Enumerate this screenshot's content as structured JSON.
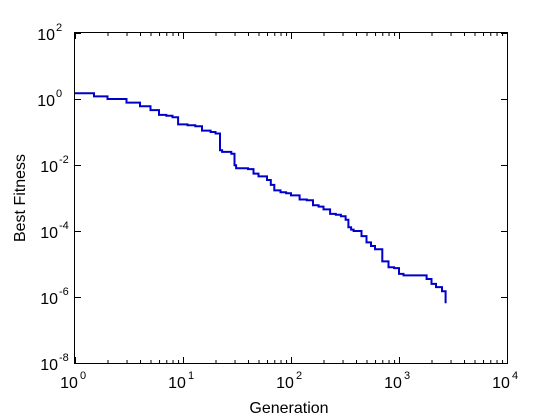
{
  "chart_data": {
    "type": "line",
    "title": "",
    "xlabel": "Generation",
    "ylabel": "Best Fitness",
    "xscale": "log",
    "yscale": "log",
    "xlim": [
      1,
      10000
    ],
    "ylim": [
      1e-08,
      100
    ],
    "grid": false,
    "legend": "none",
    "x_ticks": [
      {
        "base": "10",
        "exp": "0",
        "value": 1
      },
      {
        "base": "10",
        "exp": "1",
        "value": 10
      },
      {
        "base": "10",
        "exp": "2",
        "value": 100
      },
      {
        "base": "10",
        "exp": "3",
        "value": 1000
      },
      {
        "base": "10",
        "exp": "4",
        "value": 10000
      }
    ],
    "y_ticks": [
      {
        "base": "10",
        "exp": "2",
        "value": 100
      },
      {
        "base": "10",
        "exp": "0",
        "value": 1
      },
      {
        "base": "10",
        "exp": "-2",
        "value": 0.01
      },
      {
        "base": "10",
        "exp": "-4",
        "value": 0.0001
      },
      {
        "base": "10",
        "exp": "-6",
        "value": 1e-06
      },
      {
        "base": "10",
        "exp": "-8",
        "value": 1e-08
      }
    ],
    "series": [
      {
        "color": "#0000cc",
        "x": [
          1,
          1.5,
          2,
          3,
          4,
          5,
          6,
          7,
          8,
          9,
          11,
          13,
          15,
          18,
          20,
          22,
          23,
          28,
          30,
          31,
          32,
          40,
          45,
          50,
          60,
          65,
          70,
          80,
          90,
          100,
          110,
          120,
          140,
          160,
          180,
          200,
          230,
          260,
          290,
          320,
          340,
          360,
          380,
          400,
          450,
          500,
          550,
          600,
          700,
          800,
          900,
          1000,
          1100,
          1200,
          1500,
          1800,
          2000,
          2200,
          2500,
          2700,
          2700
        ],
        "y": [
          1.5,
          1.2,
          1.0,
          0.78,
          0.6,
          0.46,
          0.33,
          0.31,
          0.28,
          0.17,
          0.16,
          0.15,
          0.11,
          0.1,
          0.09,
          0.028,
          0.025,
          0.022,
          0.0098,
          0.008,
          0.008,
          0.0075,
          0.0055,
          0.0045,
          0.0035,
          0.0025,
          0.0017,
          0.0015,
          0.0014,
          0.0012,
          0.0012,
          0.0009,
          0.00085,
          0.0006,
          0.00055,
          0.00045,
          0.00033,
          0.00031,
          0.00028,
          0.00022,
          0.00013,
          0.00011,
          0.0001,
          0.0001,
          7e-05,
          4.5e-05,
          3.5e-05,
          2.8e-05,
          1.2e-05,
          8e-06,
          7.5e-06,
          5e-06,
          4.5e-06,
          4.5e-06,
          4.5e-06,
          3.5e-06,
          2.5e-06,
          2e-06,
          1.5e-06,
          1.2e-06,
          6.5e-07
        ]
      }
    ]
  }
}
